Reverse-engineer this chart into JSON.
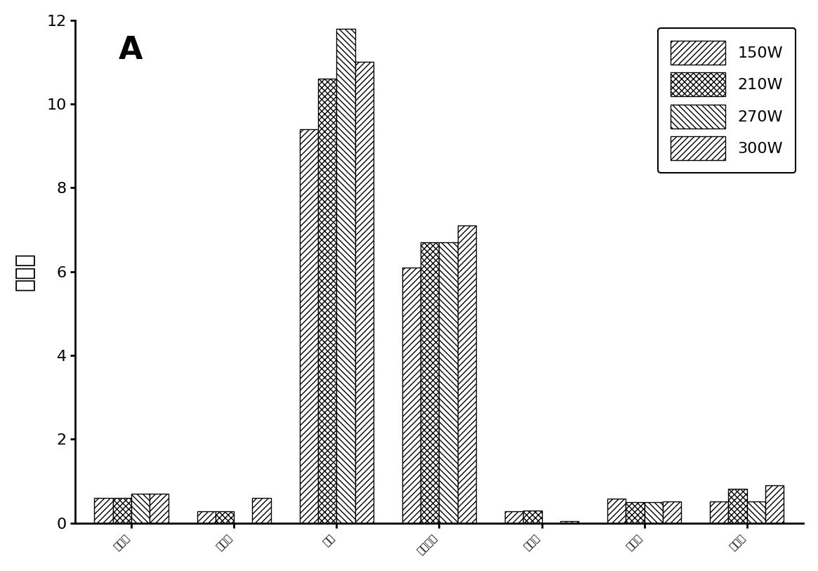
{
  "categories": [
    "鼠李糖",
    "岩藻糖",
    "木糖",
    "阿拉伯糖",
    "甘露糖",
    "葡萄糖",
    "半乳糖"
  ],
  "series": {
    "150W": [
      0.6,
      0.28,
      9.4,
      6.1,
      0.28,
      0.58,
      0.52
    ],
    "210W": [
      0.6,
      0.28,
      10.6,
      6.7,
      0.3,
      0.5,
      0.82
    ],
    "270W": [
      0.7,
      0.0,
      11.8,
      6.7,
      0.0,
      0.5,
      0.52
    ],
    "300W": [
      0.7,
      0.6,
      11.0,
      7.1,
      0.05,
      0.52,
      0.9
    ]
  },
  "series_order": [
    "150W",
    "210W",
    "270W",
    "300W"
  ],
  "ylabel": "峰面积",
  "ylim": [
    0,
    12
  ],
  "yticks": [
    0,
    2,
    4,
    6,
    8,
    10,
    12
  ],
  "panel_label": "A",
  "bar_width": 0.18,
  "background_color": "#ffffff",
  "legend_fontsize": 16,
  "ylabel_fontsize": 22,
  "tick_fontsize": 16,
  "category_fontsize": 15
}
